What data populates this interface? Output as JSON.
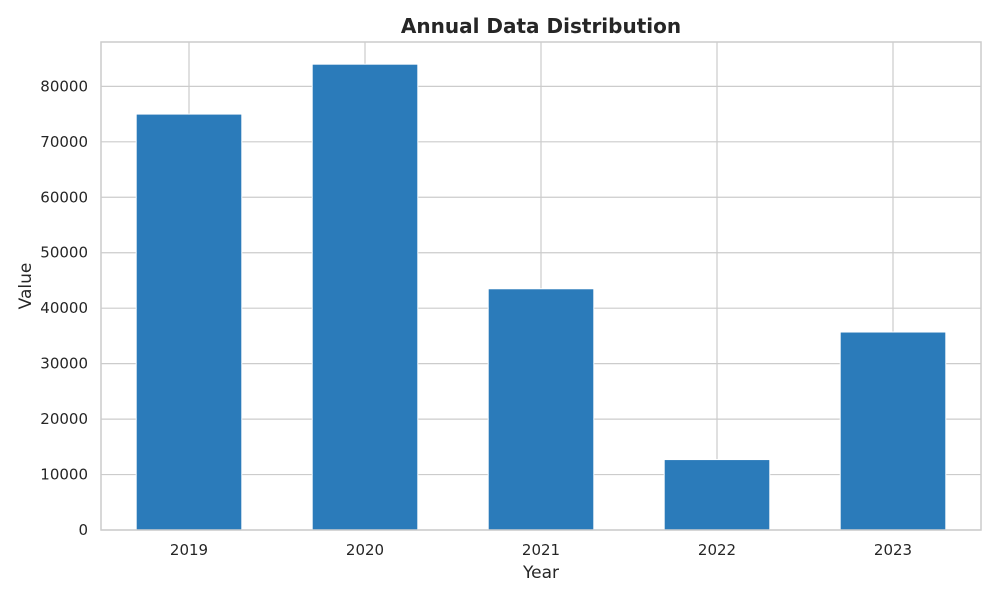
{
  "chart_data": {
    "type": "bar",
    "title": "Annual Data Distribution",
    "xlabel": "Year",
    "ylabel": "Value",
    "categories": [
      "2019",
      "2020",
      "2021",
      "2022",
      "2023"
    ],
    "values": [
      75000,
      84000,
      43500,
      12700,
      35700
    ],
    "ylim": [
      0,
      88000
    ],
    "yticks": [
      0,
      10000,
      20000,
      30000,
      40000,
      50000,
      60000,
      70000,
      80000
    ],
    "grid": true,
    "bar_color": "#2b7bba"
  }
}
